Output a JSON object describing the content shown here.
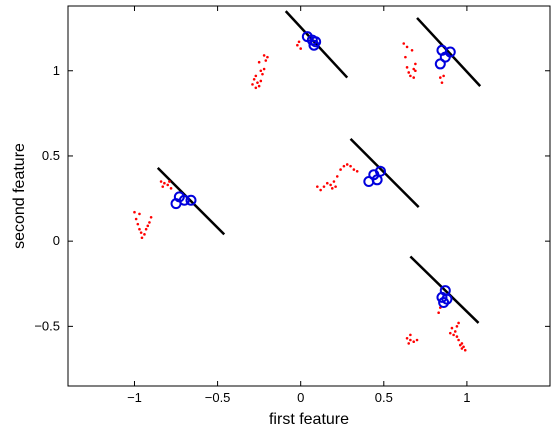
{
  "chart_data": {
    "type": "scatter",
    "title": "",
    "xlabel": "first feature",
    "ylabel": "second feature",
    "xlim": [
      -1.4,
      1.5
    ],
    "ylim": [
      -0.85,
      1.38
    ],
    "grid": false,
    "legend": "none",
    "x_ticks": [
      -1,
      -0.5,
      0,
      0.5,
      1
    ],
    "x_tick_labels": [
      "−1",
      "−0.5",
      "0",
      "0.5",
      "1"
    ],
    "y_ticks": [
      -0.5,
      0,
      0.5,
      1
    ],
    "y_tick_labels": [
      "−0.5",
      "0",
      "0.5",
      "1"
    ],
    "colors": {
      "dots": "#ff0000",
      "circles": "#0000dd",
      "lines": "#000000",
      "axes": "#000000"
    },
    "series": [
      {
        "marker": "dot",
        "points": [
          [
            -1.0,
            0.17
          ],
          [
            -0.99,
            0.13
          ],
          [
            -0.98,
            0.1
          ],
          [
            -0.97,
            0.07
          ],
          [
            -0.96,
            0.05
          ],
          [
            -0.955,
            0.02
          ],
          [
            -0.94,
            0.04
          ],
          [
            -0.93,
            0.07
          ],
          [
            -0.92,
            0.09
          ],
          [
            -0.91,
            0.11
          ],
          [
            -0.9,
            0.14
          ],
          [
            -0.97,
            0.16
          ],
          [
            -0.84,
            0.35
          ],
          [
            -0.82,
            0.34
          ],
          [
            -0.8,
            0.33
          ],
          [
            -0.78,
            0.31
          ],
          [
            -0.83,
            0.32
          ],
          [
            -0.79,
            0.35
          ],
          [
            -0.29,
            0.92
          ],
          [
            -0.28,
            0.95
          ],
          [
            -0.27,
            0.97
          ],
          [
            -0.26,
            0.93
          ],
          [
            -0.25,
            0.91
          ],
          [
            -0.24,
            0.94
          ],
          [
            -0.23,
            0.98
          ],
          [
            -0.22,
            1.01
          ],
          [
            -0.21,
            1.06
          ],
          [
            -0.2,
            1.08
          ],
          [
            -0.22,
            1.09
          ],
          [
            -0.24,
            1.0
          ],
          [
            -0.27,
            0.9
          ],
          [
            -0.25,
            1.05
          ],
          [
            -0.02,
            1.15
          ],
          [
            0.0,
            1.13
          ],
          [
            -0.01,
            1.17
          ],
          [
            0.1,
            0.32
          ],
          [
            0.12,
            0.3
          ],
          [
            0.14,
            0.32
          ],
          [
            0.16,
            0.34
          ],
          [
            0.18,
            0.33
          ],
          [
            0.19,
            0.31
          ],
          [
            0.2,
            0.35
          ],
          [
            0.22,
            0.38
          ],
          [
            0.24,
            0.42
          ],
          [
            0.26,
            0.44
          ],
          [
            0.28,
            0.45
          ],
          [
            0.3,
            0.44
          ],
          [
            0.32,
            0.42
          ],
          [
            0.34,
            0.41
          ],
          [
            0.21,
            0.32
          ],
          [
            0.62,
            1.16
          ],
          [
            0.64,
            1.14
          ],
          [
            0.63,
            1.08
          ],
          [
            0.64,
            1.02
          ],
          [
            0.65,
            0.99
          ],
          [
            0.66,
            0.97
          ],
          [
            0.68,
            0.96
          ],
          [
            0.69,
            1.0
          ],
          [
            0.69,
            1.04
          ],
          [
            0.68,
            1.01
          ],
          [
            0.67,
            1.12
          ],
          [
            0.84,
            0.96
          ],
          [
            0.85,
            0.93
          ],
          [
            0.86,
            0.97
          ],
          [
            0.83,
            -0.42
          ],
          [
            0.84,
            -0.39
          ],
          [
            0.64,
            -0.57
          ],
          [
            0.65,
            -0.6
          ],
          [
            0.66,
            -0.58
          ],
          [
            0.68,
            -0.59
          ],
          [
            0.7,
            -0.58
          ],
          [
            0.66,
            -0.55
          ],
          [
            0.9,
            -0.54
          ],
          [
            0.91,
            -0.51
          ],
          [
            0.92,
            -0.55
          ],
          [
            0.93,
            -0.53
          ],
          [
            0.94,
            -0.56
          ],
          [
            0.95,
            -0.58
          ],
          [
            0.94,
            -0.5
          ],
          [
            0.95,
            -0.48
          ],
          [
            0.96,
            -0.61
          ],
          [
            0.97,
            -0.63
          ],
          [
            0.98,
            -0.62
          ],
          [
            0.99,
            -0.64
          ],
          [
            0.97,
            -0.6
          ]
        ]
      },
      {
        "marker": "circle",
        "points": [
          [
            -0.75,
            0.22
          ],
          [
            -0.73,
            0.26
          ],
          [
            -0.7,
            0.24
          ],
          [
            -0.66,
            0.24
          ],
          [
            0.04,
            1.2
          ],
          [
            0.07,
            1.18
          ],
          [
            0.08,
            1.15
          ],
          [
            0.09,
            1.17
          ],
          [
            0.41,
            0.35
          ],
          [
            0.44,
            0.39
          ],
          [
            0.46,
            0.36
          ],
          [
            0.48,
            0.41
          ],
          [
            0.84,
            1.04
          ],
          [
            0.85,
            1.12
          ],
          [
            0.87,
            1.08
          ],
          [
            0.9,
            1.11
          ],
          [
            0.85,
            -0.33
          ],
          [
            0.86,
            -0.36
          ],
          [
            0.87,
            -0.29
          ],
          [
            0.88,
            -0.34
          ]
        ]
      }
    ],
    "lines": [
      {
        "x": [
          -0.86,
          -0.46
        ],
        "y": [
          0.43,
          0.04
        ]
      },
      {
        "x": [
          -0.09,
          0.28
        ],
        "y": [
          1.35,
          0.96
        ]
      },
      {
        "x": [
          0.3,
          0.71
        ],
        "y": [
          0.6,
          0.2
        ]
      },
      {
        "x": [
          0.7,
          1.08
        ],
        "y": [
          1.31,
          0.91
        ]
      },
      {
        "x": [
          0.66,
          1.07
        ],
        "y": [
          -0.09,
          -0.48
        ]
      }
    ]
  }
}
